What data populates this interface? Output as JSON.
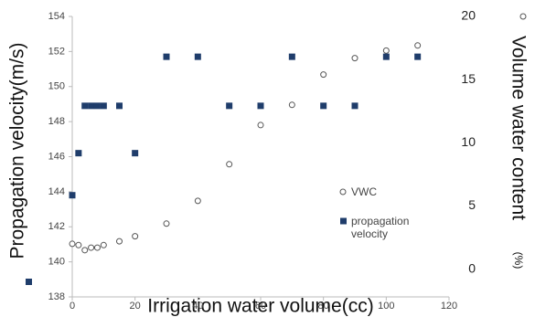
{
  "chart_data": {
    "type": "scatter",
    "x_label": "Irrigation water volume(cc)",
    "y_label": "Propagation velocity(m/s)",
    "y2_label": "Volume water content",
    "y2_unit": "(%)",
    "xlim": [
      0,
      120
    ],
    "xticks": [
      0,
      20,
      40,
      60,
      80,
      100,
      120
    ],
    "ylim": [
      138,
      154
    ],
    "yticks": [
      138,
      140,
      142,
      144,
      146,
      148,
      150,
      152,
      154
    ],
    "y2lim": [
      -2.2,
      20
    ],
    "y2ticks": [
      0,
      5,
      10,
      15,
      20
    ],
    "series": [
      {
        "name": "VWC",
        "color": "#555555",
        "marker": "circle",
        "axis": "y2",
        "x": [
          0,
          2,
          4,
          6,
          8,
          10,
          15,
          20,
          30,
          40,
          50,
          60,
          70,
          80,
          90,
          100,
          110
        ],
        "values": [
          2.0,
          1.9,
          1.5,
          1.7,
          1.7,
          1.9,
          2.2,
          2.6,
          3.6,
          5.4,
          8.3,
          11.4,
          13.0,
          15.4,
          16.7,
          17.3,
          17.7
        ]
      },
      {
        "name": "propagation velocity",
        "color": "#1f3d6b",
        "marker": "square",
        "x": [
          0,
          2,
          4,
          6,
          8,
          10,
          15,
          20,
          30,
          40,
          50,
          60,
          70,
          80,
          90,
          100,
          110
        ],
        "values": [
          143.8,
          146.2,
          148.9,
          148.9,
          148.9,
          148.9,
          148.9,
          146.2,
          151.7,
          151.7,
          148.9,
          148.9,
          151.7,
          148.9,
          148.9,
          151.7,
          151.7
        ]
      }
    ]
  }
}
